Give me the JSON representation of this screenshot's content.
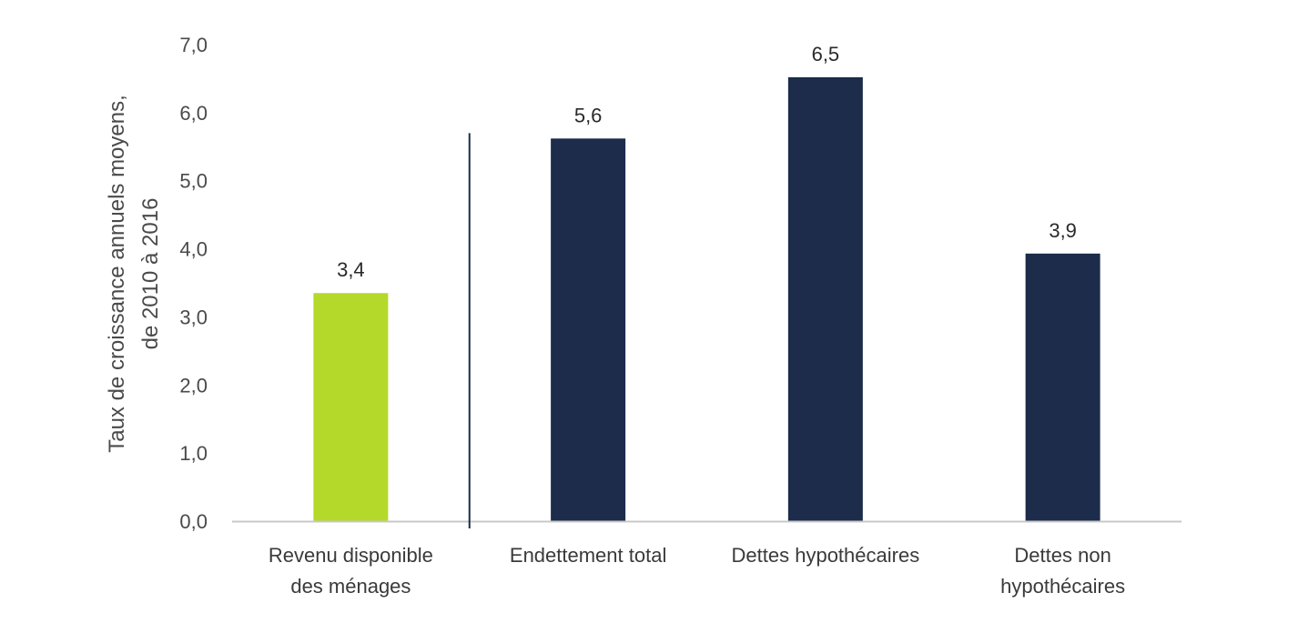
{
  "chart_data": {
    "type": "bar",
    "categories": [
      [
        "Revenu disponible",
        "des ménages"
      ],
      [
        "Endettement total"
      ],
      [
        "Dettes hypothécaires"
      ],
      [
        "Dettes non",
        "hypothécaires"
      ]
    ],
    "values": [
      3.35,
      5.62,
      6.52,
      3.93
    ],
    "data_labels": [
      "3,4",
      "5,6",
      "6,5",
      "3,9"
    ],
    "bar_colors": [
      "#b5d92a",
      "#1c2c4a",
      "#1c2c4a",
      "#1c2c4a"
    ],
    "ylabel": [
      "Taux de croissance annuels moyens,",
      "de 2010 à 2016"
    ],
    "ylim": [
      0,
      7
    ],
    "yticks": [
      0,
      1,
      2,
      3,
      4,
      5,
      6,
      7
    ],
    "ytick_labels": [
      "0,0",
      "1,0",
      "2,0",
      "3,0",
      "4,0",
      "5,0",
      "6,0",
      "7,0"
    ],
    "separator_after_category": 0,
    "separator_top_value": 5.7,
    "grid": false,
    "legend": "none"
  },
  "colors": {
    "axis": "#c8c8c8",
    "separator": "#1c2c4a"
  }
}
